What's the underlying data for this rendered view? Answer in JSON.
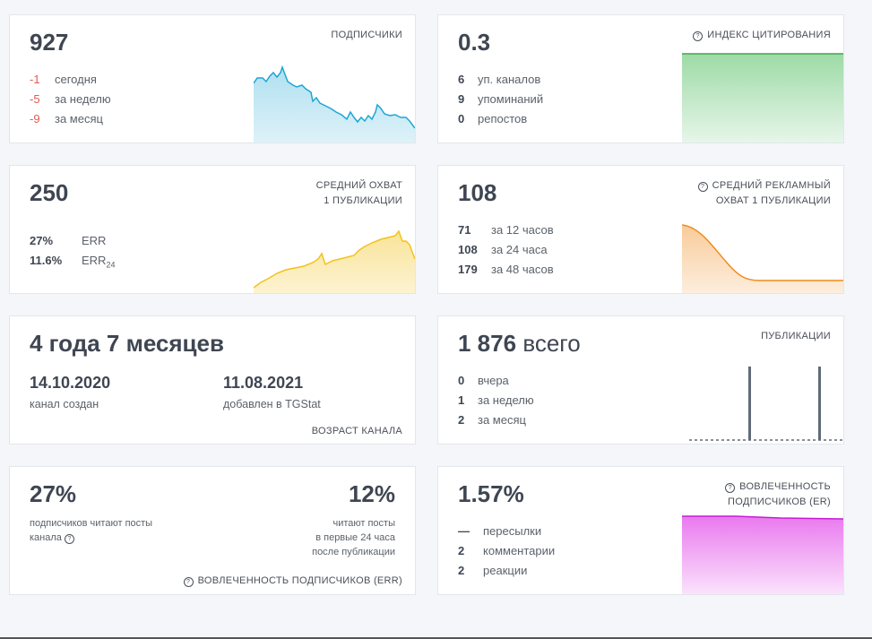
{
  "subscribers": {
    "value": "927",
    "label": "ПОДПИСЧИКИ",
    "rows": [
      {
        "v": "-1",
        "t": "сегодня"
      },
      {
        "v": "-5",
        "t": "за неделю"
      },
      {
        "v": "-9",
        "t": "за месяц"
      }
    ],
    "color": "#1da6d4"
  },
  "citation": {
    "value": "0.3",
    "label": "ИНДЕКС ЦИТИРОВАНИЯ",
    "rows": [
      {
        "v": "6",
        "t": "уп. каналов"
      },
      {
        "v": "9",
        "t": "упоминаний"
      },
      {
        "v": "0",
        "t": "репостов"
      }
    ],
    "color": "#5cc26b"
  },
  "reach": {
    "value": "250",
    "label_line1": "СРЕДНИЙ ОХВАТ",
    "label_line2": "1 ПУБЛИКАЦИИ",
    "rows": [
      {
        "v": "27%",
        "t": "ERR"
      },
      {
        "v": "11.6%",
        "t": "ERR",
        "sub": "24"
      }
    ],
    "color": "#f2c21b"
  },
  "ad_reach": {
    "value": "108",
    "label_line1": "СРЕДНИЙ РЕКЛАМНЫЙ",
    "label_line2": "ОХВАТ 1 ПУБЛИКАЦИИ",
    "rows": [
      {
        "v": "71",
        "t": "за 12 часов"
      },
      {
        "v": "108",
        "t": "за 24 часа"
      },
      {
        "v": "179",
        "t": "за 48 часов"
      }
    ],
    "color": "#f08c1e"
  },
  "age": {
    "value": "4 года 7 месяцев",
    "created_date": "14.10.2020",
    "created_label": "канал создан",
    "added_date": "11.08.2021",
    "added_label": "добавлен в TGStat",
    "label": "ВОЗРАСТ КАНАЛА"
  },
  "posts": {
    "value_num": "1 876",
    "value_word": "всего",
    "label": "ПУБЛИКАЦИИ",
    "rows": [
      {
        "v": "0",
        "t": "вчера"
      },
      {
        "v": "1",
        "t": "за неделю"
      },
      {
        "v": "2",
        "t": "за месяц"
      }
    ],
    "color": "#5f6b78"
  },
  "err": {
    "left_value": "27%",
    "left_text_1": "подписчиков читают посты",
    "left_text_2": "канала",
    "right_value": "12%",
    "right_text_1": "читают посты",
    "right_text_2": "в первые 24 часа",
    "right_text_3": "после публикации",
    "label": "ВОВЛЕЧЕННОСТЬ ПОДПИСЧИКОВ (ERR)"
  },
  "er": {
    "value": "1.57%",
    "label_line1": "ВОВЛЕЧЕННОСТЬ",
    "label_line2": "ПОДПИСЧИКОВ (ER)",
    "rows": [
      {
        "v": "—",
        "t": "пересылки"
      },
      {
        "v": "2",
        "t": "комментарии"
      },
      {
        "v": "2",
        "t": "реакции"
      }
    ],
    "color": "#e040e8"
  }
}
